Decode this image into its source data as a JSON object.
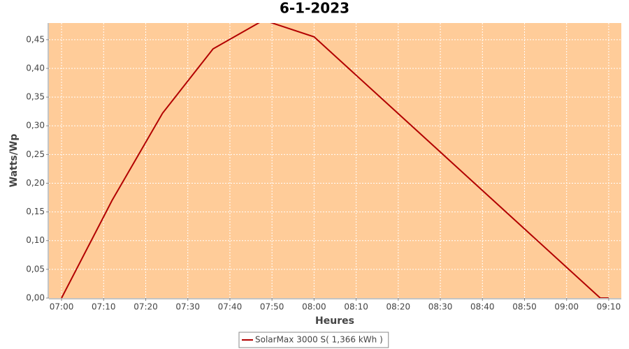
{
  "chart_data": {
    "type": "line",
    "title": "6-1-2023",
    "x_label": "Heures",
    "y_label": "Watts/Wp",
    "x": [
      "07:00",
      "07:12",
      "07:24",
      "07:36",
      "07:48",
      "08:00",
      "09:08",
      "09:10"
    ],
    "series": [
      {
        "name": "SolarMax 3000 S( 1,366 kWh )",
        "color": "#b20000",
        "values": [
          0,
          0.17,
          0.322,
          0.434,
          0.484,
          0.455,
          0,
          0
        ]
      }
    ],
    "xlim": [
      "06:57",
      "09:13"
    ],
    "xticks": [
      "07:00",
      "07:10",
      "07:20",
      "07:30",
      "07:40",
      "07:50",
      "08:00",
      "08:10",
      "08:20",
      "08:30",
      "08:40",
      "08:50",
      "09:00",
      "09:10"
    ],
    "ylim": [
      0,
      0.479
    ],
    "yticks": [
      {
        "value": 0,
        "label": "0,00"
      },
      {
        "value": 0.05,
        "label": "0,05"
      },
      {
        "value": 0.1,
        "label": "0,10"
      },
      {
        "value": 0.15,
        "label": "0,15"
      },
      {
        "value": 0.2,
        "label": "0,20"
      },
      {
        "value": 0.25,
        "label": "0,25"
      },
      {
        "value": 0.3,
        "label": "0,30"
      },
      {
        "value": 0.35,
        "label": "0,35"
      },
      {
        "value": 0.4,
        "label": "0,40"
      },
      {
        "value": 0.45,
        "label": "0,45"
      }
    ],
    "grid": true,
    "plot_background": "#ffcc99",
    "legend": "bottom"
  }
}
